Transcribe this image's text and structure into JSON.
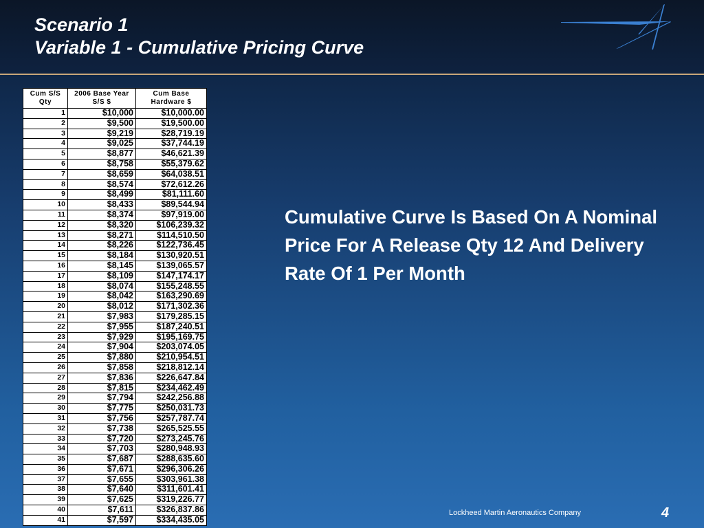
{
  "title": {
    "line1": "Scenario 1",
    "line2": "Variable 1 - Cumulative Pricing Curve"
  },
  "table": {
    "headers": [
      "Cum S/S Qty",
      "2006 Base Year S/S $",
      "Cum Base Hardware $"
    ],
    "rows": [
      [
        "1",
        "$10,000",
        "$10,000.00"
      ],
      [
        "2",
        "$9,500",
        "$19,500.00"
      ],
      [
        "3",
        "$9,219",
        "$28,719.19"
      ],
      [
        "4",
        "$9,025",
        "$37,744.19"
      ],
      [
        "5",
        "$8,877",
        "$46,621.39"
      ],
      [
        "6",
        "$8,758",
        "$55,379.62"
      ],
      [
        "7",
        "$8,659",
        "$64,038.51"
      ],
      [
        "8",
        "$8,574",
        "$72,612.26"
      ],
      [
        "9",
        "$8,499",
        "$81,111.60"
      ],
      [
        "10",
        "$8,433",
        "$89,544.94"
      ],
      [
        "11",
        "$8,374",
        "$97,919.00"
      ],
      [
        "12",
        "$8,320",
        "$106,239.32"
      ],
      [
        "13",
        "$8,271",
        "$114,510.50"
      ],
      [
        "14",
        "$8,226",
        "$122,736.45"
      ],
      [
        "15",
        "$8,184",
        "$130,920.51"
      ],
      [
        "16",
        "$8,145",
        "$139,065.57"
      ],
      [
        "17",
        "$8,109",
        "$147,174.17"
      ],
      [
        "18",
        "$8,074",
        "$155,248.55"
      ],
      [
        "19",
        "$8,042",
        "$163,290.69"
      ],
      [
        "20",
        "$8,012",
        "$171,302.36"
      ],
      [
        "21",
        "$7,983",
        "$179,285.15"
      ],
      [
        "22",
        "$7,955",
        "$187,240.51"
      ],
      [
        "23",
        "$7,929",
        "$195,169.75"
      ],
      [
        "24",
        "$7,904",
        "$203,074.05"
      ],
      [
        "25",
        "$7,880",
        "$210,954.51"
      ],
      [
        "26",
        "$7,858",
        "$218,812.14"
      ],
      [
        "27",
        "$7,836",
        "$226,647.84"
      ],
      [
        "28",
        "$7,815",
        "$234,462.49"
      ],
      [
        "29",
        "$7,794",
        "$242,256.88"
      ],
      [
        "30",
        "$7,775",
        "$250,031.73"
      ],
      [
        "31",
        "$7,756",
        "$257,787.74"
      ],
      [
        "32",
        "$7,738",
        "$265,525.55"
      ],
      [
        "33",
        "$7,720",
        "$273,245.76"
      ],
      [
        "34",
        "$7,703",
        "$280,948.93"
      ],
      [
        "35",
        "$7,687",
        "$288,635.60"
      ],
      [
        "36",
        "$7,671",
        "$296,306.26"
      ],
      [
        "37",
        "$7,655",
        "$303,961.38"
      ],
      [
        "38",
        "$7,640",
        "$311,601.41"
      ],
      [
        "39",
        "$7,625",
        "$319,226.77"
      ],
      [
        "40",
        "$7,611",
        "$326,837.86"
      ],
      [
        "41",
        "$7,597",
        "$334,435.05"
      ]
    ]
  },
  "note": "Cumulative Curve Is Based On A Nominal Price For A Release Qty 12 And Delivery Rate Of 1 Per Month",
  "footer": {
    "company": "Lockheed Martin Aeronautics Company",
    "page": "4"
  },
  "logo": {
    "icon": "lockheed-martin-star-icon",
    "color": "#3a7fd0"
  }
}
